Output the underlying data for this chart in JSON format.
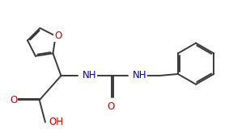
{
  "bg_color": "#ffffff",
  "line_color": "#3a3a3a",
  "o_color": "#cc0000",
  "n_color": "#0000cc",
  "lw": 1.4,
  "fs": 8.5,
  "fig_width": 3.04,
  "fig_height": 1.74,
  "dpi": 100,
  "xlim": [
    -0.3,
    8.2
  ],
  "ylim": [
    0.2,
    5.0
  ]
}
